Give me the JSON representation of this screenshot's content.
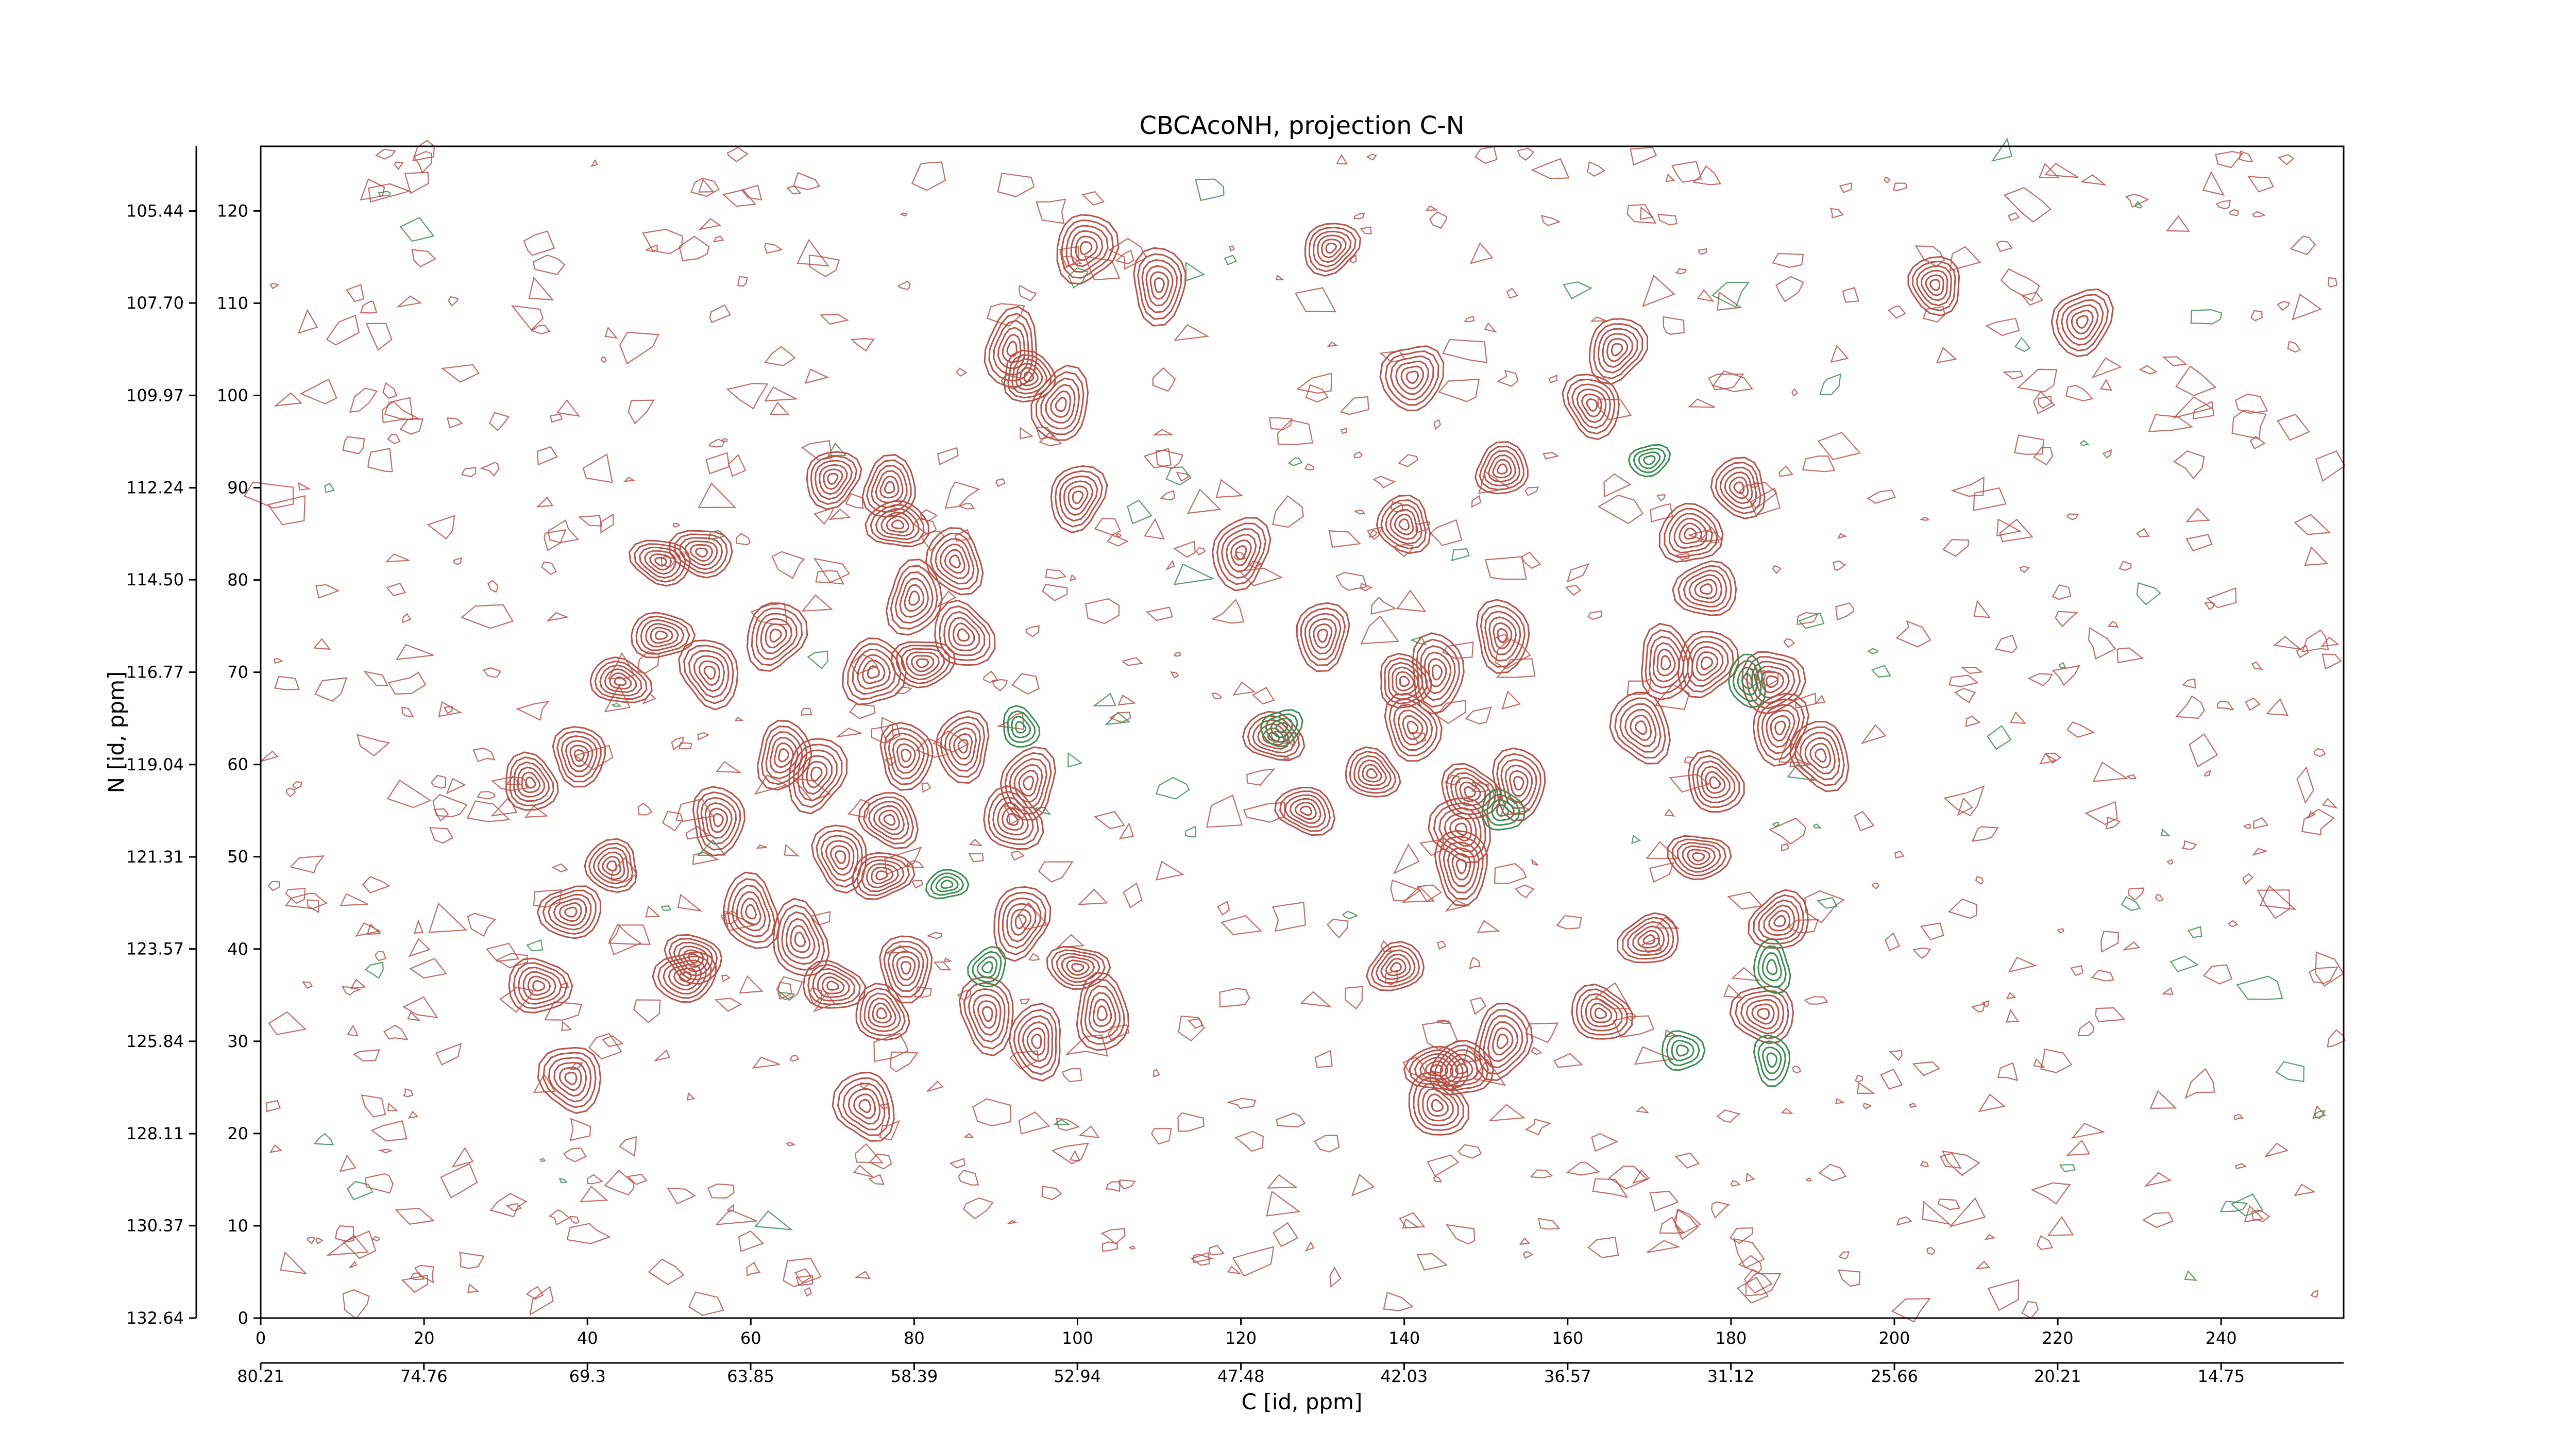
{
  "chart_data": {
    "type": "contour",
    "title": "CBCAcoNH, projection C-N",
    "xlabel": "C [id, ppm]",
    "ylabel": "N [id, ppm]",
    "xlim": [
      0,
      255
    ],
    "xticks": [
      0,
      20,
      40,
      60,
      80,
      100,
      120,
      140,
      160,
      180,
      200,
      220,
      240
    ],
    "ylim": [
      0,
      127
    ],
    "yticks": [
      0,
      10,
      20,
      30,
      40,
      50,
      60,
      70,
      80,
      90,
      100,
      110,
      120
    ],
    "x2lim": [
      80.21,
      10.66
    ],
    "x2ticks": [
      80.21,
      74.76,
      69.3,
      63.85,
      58.39,
      52.94,
      47.48,
      42.03,
      36.57,
      31.12,
      25.66,
      20.21,
      14.75
    ],
    "x2ticks_labels_note_free": null,
    "y2lim": [
      132.64,
      103.85
    ],
    "y2ticks": [
      132.64,
      130.37,
      128.11,
      125.84,
      123.57,
      121.31,
      119.04,
      116.77,
      {
        "value": 114.5,
        "label": "114.50"
      },
      112.24,
      109.97,
      {
        "value": 107.7,
        "label": "107.70"
      },
      105.44
    ],
    "series": [
      {
        "color": "#b5544b",
        "x": [
          101,
          110,
          131,
          205,
          223,
          92,
          94,
          98,
          141,
          166,
          163,
          70,
          77,
          78,
          100,
          120,
          152,
          181,
          175,
          140,
          49,
          54,
          85,
          80,
          177,
          49,
          63,
          86,
          130,
          152,
          172,
          177,
          44,
          55,
          75,
          81,
          140,
          144,
          185,
          124,
          141,
          169,
          186,
          191,
          39,
          33,
          64,
          79,
          86,
          94,
          68,
          136,
          128,
          148,
          154,
          178,
          56,
          77,
          92,
          147,
          43,
          71,
          76,
          176,
          147,
          60,
          66,
          38,
          93,
          186,
          53,
          170,
          34,
          52,
          70,
          79,
          100,
          139,
          76,
          89,
          103,
          164,
          184,
          95,
          152,
          38,
          144,
          147,
          74,
          144
        ],
        "y": [
          116,
          112,
          116,
          112,
          108,
          105,
          102,
          99,
          102,
          105,
          99,
          91,
          90,
          86,
          89,
          83,
          92,
          90,
          85,
          86,
          82,
          83,
          82,
          78,
          79,
          74,
          74,
          74,
          74,
          74,
          71,
          71,
          69,
          70,
          70,
          71,
          69,
          70,
          69,
          63,
          64,
          64,
          64,
          61,
          61,
          58,
          61,
          61,
          62,
          58,
          59,
          59,
          55,
          57,
          58,
          58,
          54,
          54,
          54,
          53,
          49,
          50,
          48,
          50,
          49,
          44,
          41,
          44,
          43,
          43,
          39,
          41,
          36,
          37,
          36,
          38,
          38,
          38,
          33,
          33,
          33,
          33,
          33,
          30,
          30,
          26,
          27,
          27,
          23,
          23
        ]
      },
      {
        "color": "#3d8c52",
        "x": [
          89,
          185,
          174,
          185,
          84,
          152,
          170,
          93,
          182,
          125
        ],
        "y": [
          38,
          38,
          29,
          28,
          47,
          55,
          93,
          64,
          69,
          64
        ]
      }
    ]
  }
}
